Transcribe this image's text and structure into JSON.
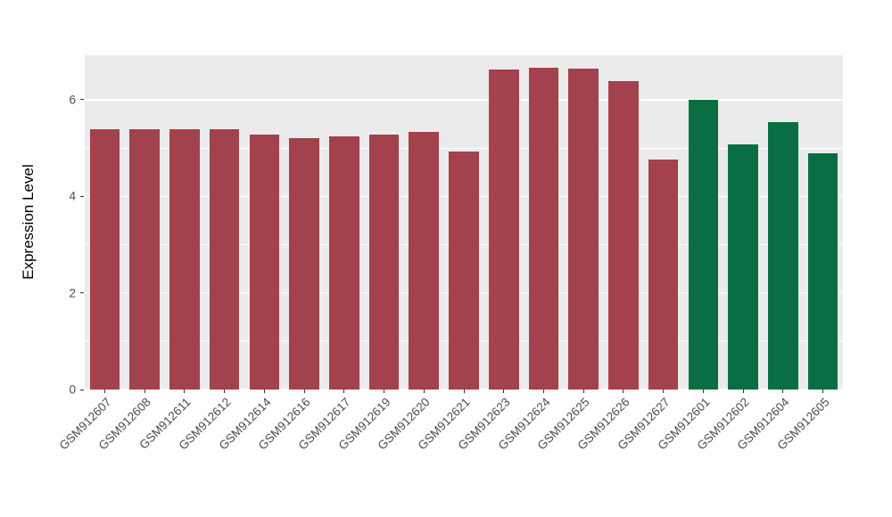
{
  "chart_data": {
    "type": "bar",
    "title": "",
    "xlabel": "",
    "ylabel": "Expression Level",
    "categories": [
      "GSM912607",
      "GSM912608",
      "GSM912611",
      "GSM912612",
      "GSM912614",
      "GSM912616",
      "GSM912617",
      "GSM912619",
      "GSM912620",
      "GSM912621",
      "GSM912623",
      "GSM912624",
      "GSM912625",
      "GSM912626",
      "GSM912627",
      "GSM912601",
      "GSM912602",
      "GSM912604",
      "GSM912605"
    ],
    "values": [
      5.39,
      5.39,
      5.38,
      5.38,
      5.28,
      5.21,
      5.24,
      5.28,
      5.33,
      4.93,
      6.63,
      6.67,
      6.65,
      6.38,
      4.76,
      6.0,
      5.07,
      5.54,
      4.89
    ],
    "bar_colors": [
      "#A3414C",
      "#A3414C",
      "#A3414C",
      "#A3414C",
      "#A3414C",
      "#A3414C",
      "#A3414C",
      "#A3414C",
      "#A3414C",
      "#A3414C",
      "#A3414C",
      "#A3414C",
      "#A3414C",
      "#A3414C",
      "#A3414C",
      "#096F43",
      "#096F43",
      "#096F43",
      "#096F43"
    ],
    "group_colors": {
      "red_group": "#A3414C",
      "green_group": "#096F43"
    },
    "yticks_major": [
      0,
      2,
      4,
      6
    ],
    "yticks_minor": [
      1,
      3,
      5
    ],
    "ylim": [
      0,
      6.92
    ],
    "panel_background": "#EBEBEB",
    "grid_color": "#FFFFFF",
    "axis_text_color": "#4D4D4D",
    "legend": "none",
    "bar_width_ratio": 0.75
  }
}
